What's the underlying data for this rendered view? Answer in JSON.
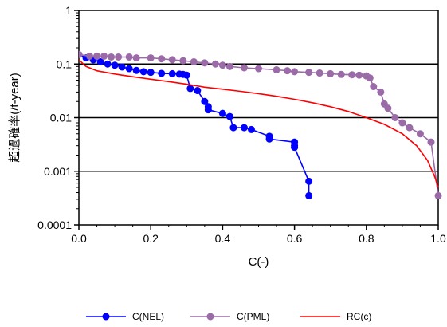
{
  "chart_data": {
    "type": "line",
    "xlabel": "C(-)",
    "ylabel": "超過確率(/t-year)",
    "xlim": [
      0.0,
      1.0
    ],
    "ylim": [
      0.0001,
      1
    ],
    "yscale": "log",
    "x_ticks": [
      "0.0",
      "0.2",
      "0.4",
      "0.6",
      "0.8",
      "1.0"
    ],
    "y_ticks": [
      "0.0001",
      "0.001",
      "0.01",
      "0.1",
      "1"
    ],
    "grid": "horizontal major lines",
    "legend_position": "bottom",
    "series": [
      {
        "name": "C(NEL)",
        "color": "#0000ff",
        "marker": "circle",
        "points": [
          [
            0.0,
            0.15
          ],
          [
            0.02,
            0.13
          ],
          [
            0.04,
            0.12
          ],
          [
            0.06,
            0.11
          ],
          [
            0.08,
            0.1
          ],
          [
            0.1,
            0.095
          ],
          [
            0.12,
            0.088
          ],
          [
            0.14,
            0.082
          ],
          [
            0.16,
            0.076
          ],
          [
            0.18,
            0.072
          ],
          [
            0.2,
            0.07
          ],
          [
            0.23,
            0.067
          ],
          [
            0.26,
            0.066
          ],
          [
            0.28,
            0.065
          ],
          [
            0.29,
            0.064
          ],
          [
            0.3,
            0.062
          ],
          [
            0.31,
            0.035
          ],
          [
            0.33,
            0.032
          ],
          [
            0.35,
            0.02
          ],
          [
            0.36,
            0.016
          ],
          [
            0.36,
            0.014
          ],
          [
            0.4,
            0.012
          ],
          [
            0.42,
            0.0105
          ],
          [
            0.43,
            0.0065
          ],
          [
            0.46,
            0.0065
          ],
          [
            0.48,
            0.006
          ],
          [
            0.53,
            0.0045
          ],
          [
            0.53,
            0.004
          ],
          [
            0.6,
            0.0035
          ],
          [
            0.6,
            0.003
          ],
          [
            0.6,
            0.0028
          ],
          [
            0.64,
            0.00065
          ],
          [
            0.64,
            0.00035
          ]
        ]
      },
      {
        "name": "C(PML)",
        "color": "#9b6ba8",
        "marker": "circle",
        "points": [
          [
            0.0,
            0.15
          ],
          [
            0.03,
            0.14
          ],
          [
            0.05,
            0.14
          ],
          [
            0.07,
            0.14
          ],
          [
            0.09,
            0.135
          ],
          [
            0.11,
            0.135
          ],
          [
            0.14,
            0.135
          ],
          [
            0.16,
            0.13
          ],
          [
            0.2,
            0.13
          ],
          [
            0.23,
            0.125
          ],
          [
            0.26,
            0.12
          ],
          [
            0.29,
            0.115
          ],
          [
            0.32,
            0.11
          ],
          [
            0.35,
            0.105
          ],
          [
            0.38,
            0.1
          ],
          [
            0.4,
            0.095
          ],
          [
            0.42,
            0.09
          ],
          [
            0.46,
            0.085
          ],
          [
            0.5,
            0.082
          ],
          [
            0.55,
            0.078
          ],
          [
            0.58,
            0.075
          ],
          [
            0.6,
            0.072
          ],
          [
            0.64,
            0.07
          ],
          [
            0.67,
            0.068
          ],
          [
            0.7,
            0.066
          ],
          [
            0.73,
            0.064
          ],
          [
            0.76,
            0.063
          ],
          [
            0.78,
            0.062
          ],
          [
            0.8,
            0.06
          ],
          [
            0.81,
            0.055
          ],
          [
            0.82,
            0.038
          ],
          [
            0.84,
            0.03
          ],
          [
            0.85,
            0.018
          ],
          [
            0.86,
            0.015
          ],
          [
            0.88,
            0.01
          ],
          [
            0.9,
            0.008
          ],
          [
            0.92,
            0.0065
          ],
          [
            0.95,
            0.005
          ],
          [
            0.98,
            0.0035
          ],
          [
            1.0,
            0.00035
          ]
        ]
      },
      {
        "name": "RC(c)",
        "color": "#ff0000",
        "marker": "none",
        "points": [
          [
            0.0,
            0.12
          ],
          [
            0.02,
            0.09
          ],
          [
            0.05,
            0.075
          ],
          [
            0.1,
            0.065
          ],
          [
            0.15,
            0.058
          ],
          [
            0.2,
            0.052
          ],
          [
            0.25,
            0.047
          ],
          [
            0.3,
            0.042
          ],
          [
            0.35,
            0.037
          ],
          [
            0.4,
            0.034
          ],
          [
            0.45,
            0.031
          ],
          [
            0.5,
            0.028
          ],
          [
            0.55,
            0.025
          ],
          [
            0.6,
            0.022
          ],
          [
            0.65,
            0.019
          ],
          [
            0.7,
            0.016
          ],
          [
            0.75,
            0.013
          ],
          [
            0.8,
            0.01
          ],
          [
            0.85,
            0.0075
          ],
          [
            0.9,
            0.005
          ],
          [
            0.94,
            0.003
          ],
          [
            0.97,
            0.0016
          ],
          [
            0.99,
            0.0008
          ],
          [
            1.0,
            0.0005
          ]
        ]
      }
    ]
  }
}
